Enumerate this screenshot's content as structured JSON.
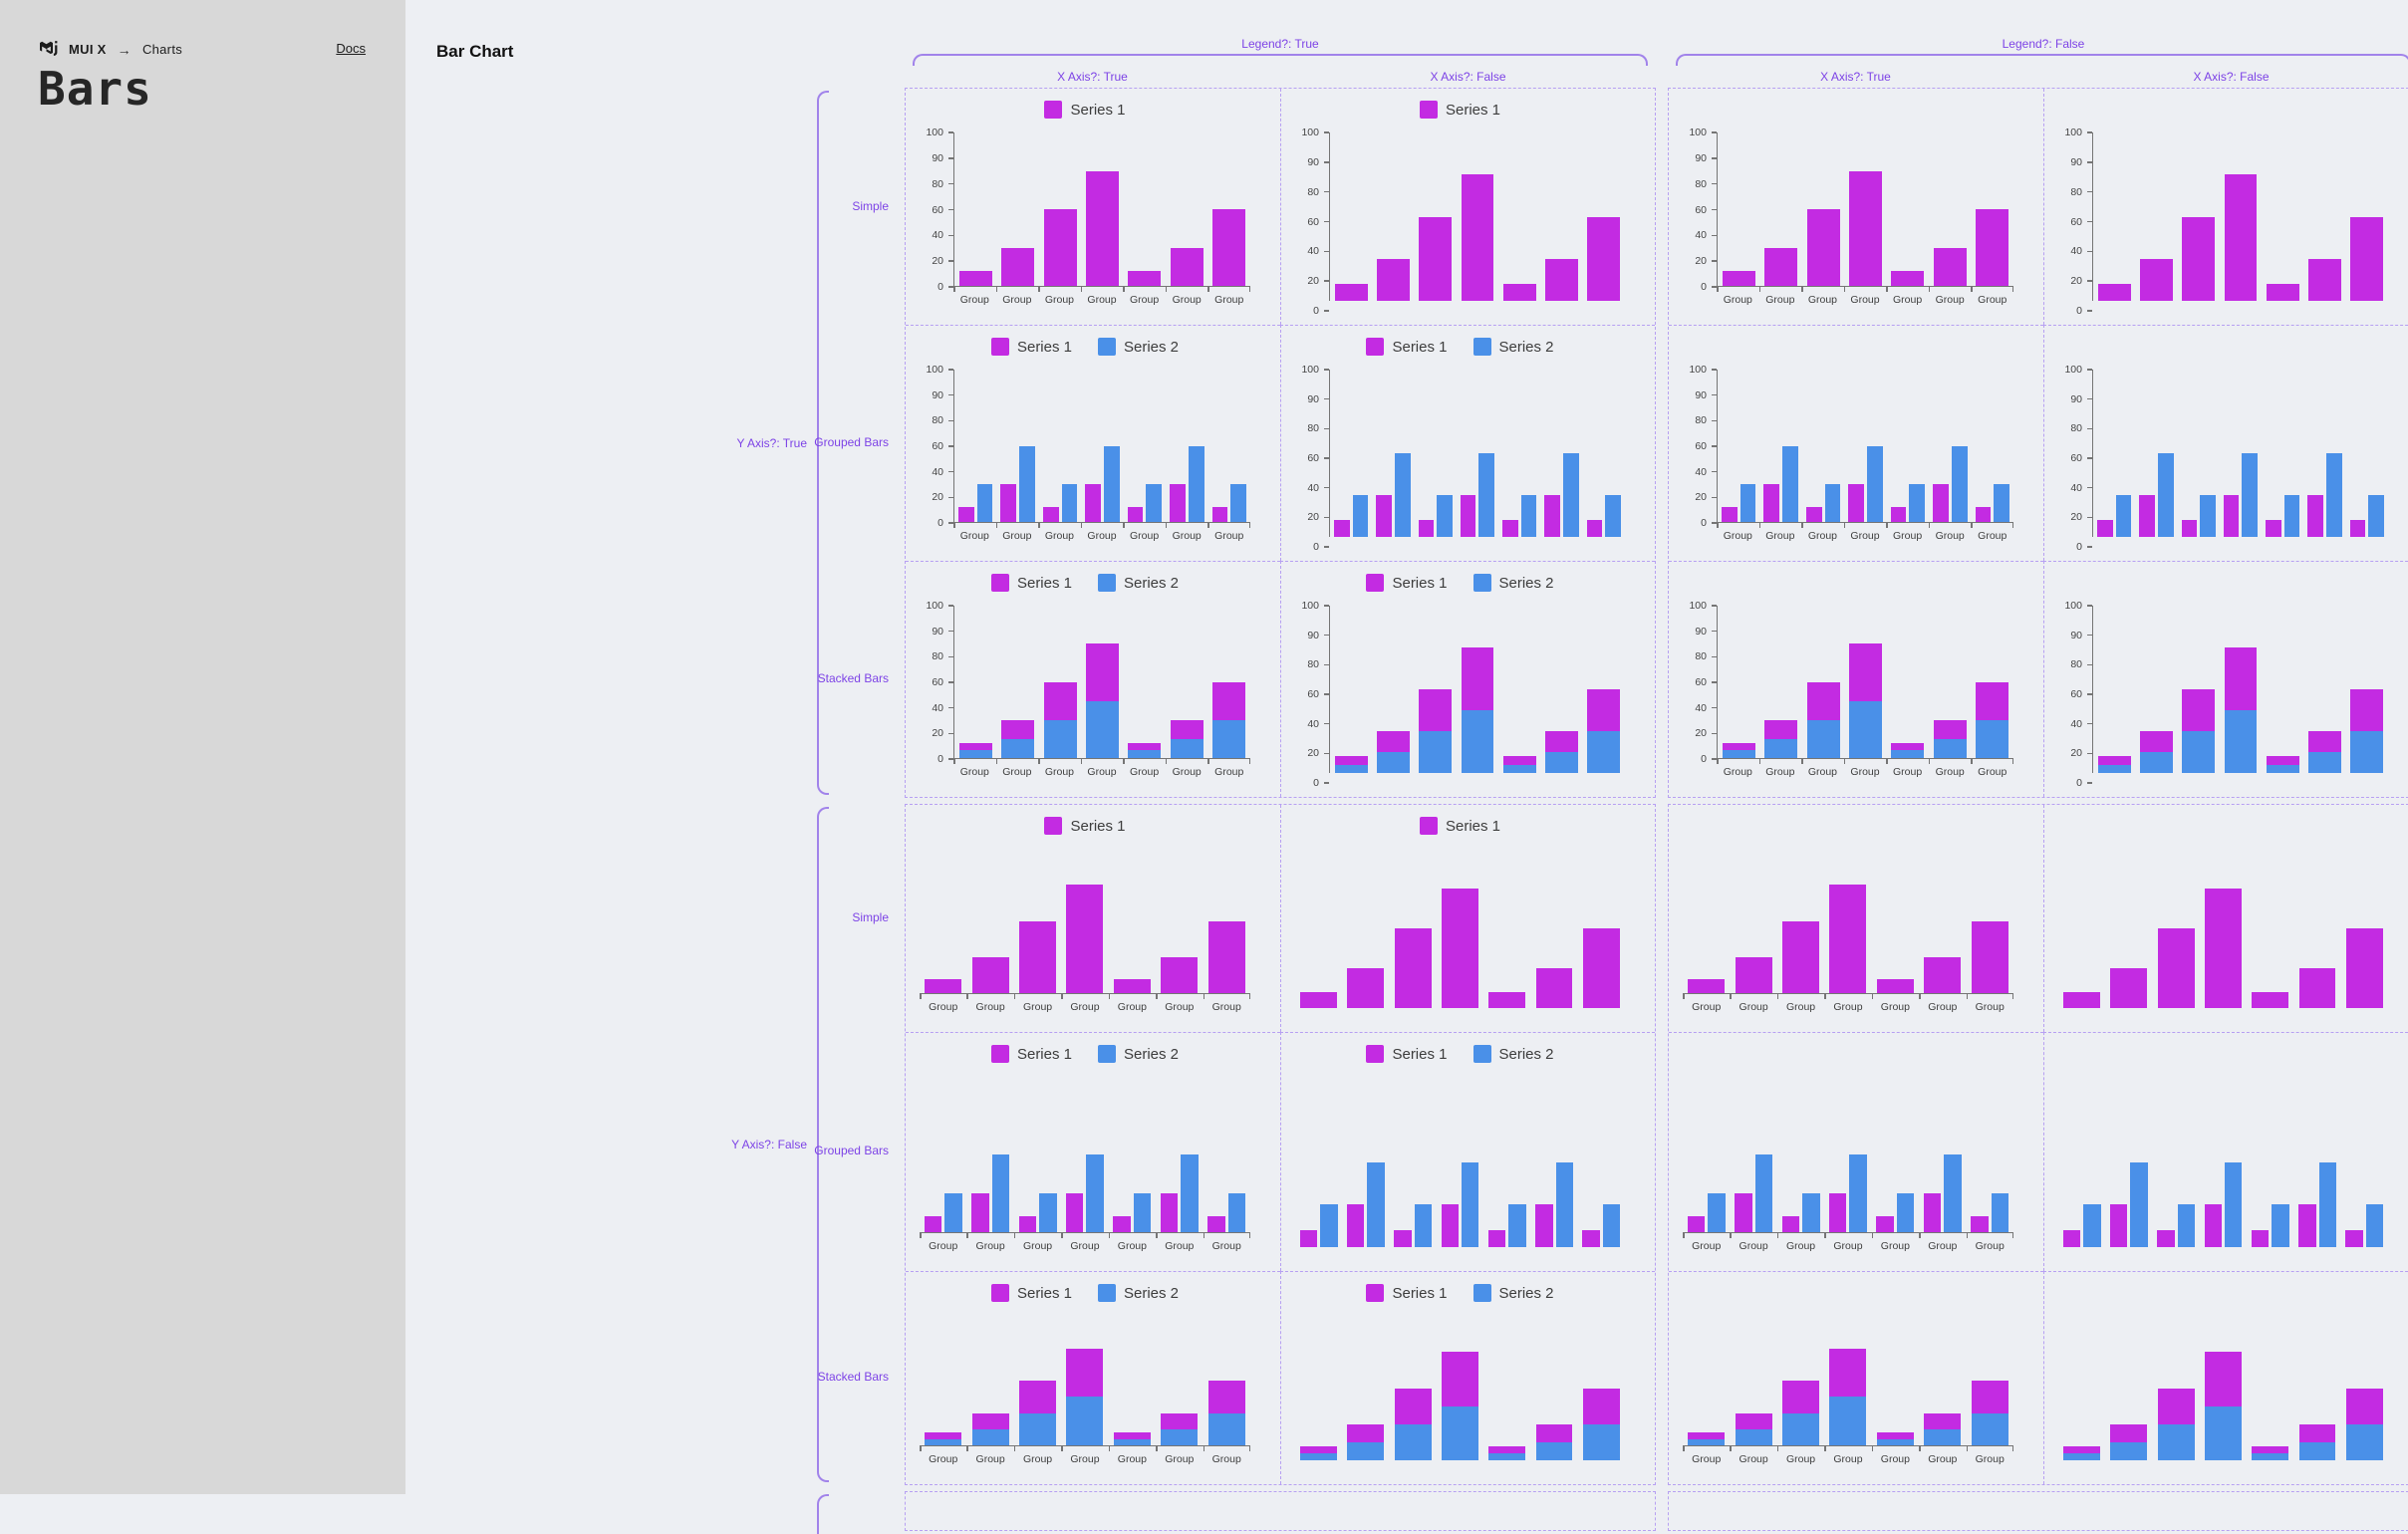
{
  "app": {
    "brand": "MUI X",
    "breadcrumb_separator": "→",
    "breadcrumb": "Charts",
    "docs_link": "Docs",
    "sidebar_title": "Bars",
    "page_heading": "Bar Chart"
  },
  "matrix": {
    "column_groups": [
      {
        "label": "Legend?: True",
        "legend": true,
        "columns": [
          {
            "label": "X Axis?: True",
            "x_axis": true
          },
          {
            "label": "X Axis?: False",
            "x_axis": false
          }
        ]
      },
      {
        "label": "Legend?: False",
        "legend": false,
        "columns": [
          {
            "label": "X Axis?: True",
            "x_axis": true
          },
          {
            "label": "X Axis?: False",
            "x_axis": false
          }
        ]
      }
    ],
    "row_groups": [
      {
        "label": "Y Axis?: True",
        "y_axis": true,
        "rows": [
          {
            "label": "Simple",
            "variant": "simple"
          },
          {
            "label": "Grouped Bars",
            "variant": "grouped"
          },
          {
            "label": "Stacked Bars",
            "variant": "stacked"
          }
        ]
      },
      {
        "label": "Y Axis?: False",
        "y_axis": false,
        "rows": [
          {
            "label": "Simple",
            "variant": "simple"
          },
          {
            "label": "Grouped Bars",
            "variant": "grouped"
          },
          {
            "label": "Stacked Bars",
            "variant": "stacked"
          }
        ]
      }
    ]
  },
  "chart_data": {
    "type": "bar",
    "categories": [
      "Group",
      "Group",
      "Group",
      "Group",
      "Group",
      "Group",
      "Group"
    ],
    "xlabel": "",
    "ylabel": "",
    "ylim": [
      0,
      100
    ],
    "y_ticks": [
      0,
      20,
      40,
      60,
      80,
      90,
      100
    ],
    "grid": false,
    "legend_position": "top",
    "variants": {
      "simple": {
        "stacked": false,
        "series": [
          {
            "name": "Series 1",
            "color": "#c32be2",
            "values": [
              12,
              30,
              60,
              85,
              12,
              30,
              60
            ]
          }
        ]
      },
      "grouped": {
        "stacked": false,
        "series": [
          {
            "name": "Series 1",
            "color": "#c32be2",
            "values": [
              12,
              30,
              12,
              30,
              12,
              30,
              12
            ]
          },
          {
            "name": "Series 2",
            "color": "#4a90e8",
            "values": [
              30,
              60,
              30,
              60,
              30,
              60,
              30
            ]
          }
        ]
      },
      "stacked": {
        "stacked": true,
        "series": [
          {
            "name": "Series 1",
            "color": "#c32be2",
            "values": [
              6,
              15,
              30,
              40,
              6,
              15,
              30
            ]
          },
          {
            "name": "Series 2",
            "color": "#4a90e8",
            "values": [
              6,
              15,
              30,
              45,
              6,
              15,
              30
            ]
          }
        ]
      }
    }
  },
  "colors": {
    "series1": "#c32be2",
    "series2": "#4a90e8",
    "annotation_text": "#7d43e6",
    "bracket": "#a183ea",
    "dashed_border": "#b7a0f2",
    "axis": "#757575",
    "sidebar_bg": "#d8d8d8",
    "main_bg": "#edeff3"
  }
}
